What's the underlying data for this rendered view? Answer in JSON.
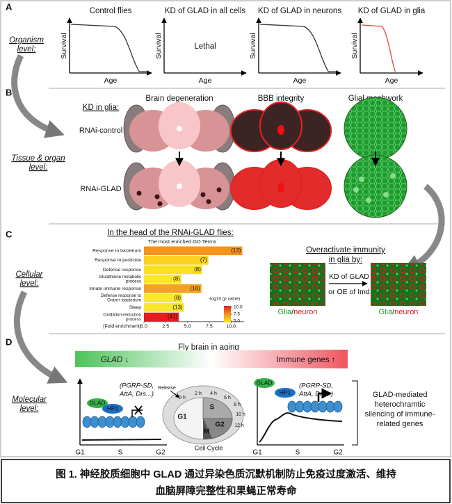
{
  "panel_labels": [
    "A",
    "B",
    "C",
    "D"
  ],
  "levels": {
    "organism": [
      "Organism",
      "level:"
    ],
    "tissue": [
      "Tissue & organ",
      "level:"
    ],
    "cellular": [
      "Cellular",
      "level:"
    ],
    "molecular": [
      "Molecular",
      "level:"
    ]
  },
  "panel_a": {
    "y_label": "Survival",
    "x_label": "Age",
    "plots": [
      {
        "title": "Control flies"
      },
      {
        "title": "KD of GLAD in all cells",
        "note": "Lethal"
      },
      {
        "title": "KD of GLAD in neurons"
      },
      {
        "title": "KD of GLAD in glia"
      }
    ]
  },
  "panel_b": {
    "kd_label": "KD in glia:",
    "rows": [
      "RNAi-control",
      "RNAi-GLAD"
    ],
    "columns": [
      "Brain degeneration",
      "BBB integrity",
      "Glial meshwork"
    ]
  },
  "panel_c": {
    "chart": {
      "type": "bar",
      "title": "In the head of the RNAi-GLAD flies:",
      "subtitle": "The most enriched GO Terms",
      "categories": [
        [
          "Response to bacterium"
        ],
        [
          "Response to pesticide"
        ],
        [
          "Defense response"
        ],
        [
          "Glutathione metabolic",
          "process"
        ],
        [
          "Innate immune response"
        ],
        [
          "Defense response to",
          "Gram+ bacterium"
        ],
        [
          "Sleep"
        ],
        [
          "Oxidation-reduction",
          "process"
        ]
      ],
      "values": [
        11.3,
        7.4,
        6.7,
        4.3,
        6.6,
        4.4,
        4.6,
        4.0
      ],
      "gene_counts": [
        "(13)",
        "(7)",
        "(8)",
        "(8)",
        "(16)",
        "(8)",
        "(13)",
        "(41)"
      ],
      "colors": [
        "#f6921e",
        "#fbd21f",
        "#f9e11e",
        "#fbe81f",
        "#f5a21e",
        "#f9e92a",
        "#f9e530",
        "#e51d1e"
      ],
      "x_label": "(Fold enrichment)",
      "xlim": [
        0,
        11.5
      ],
      "xticks": [
        {
          "value": 0,
          "label": "0.0"
        },
        2.5,
        {
          "value": 5,
          "label": "5.0"
        },
        7.5,
        {
          "value": 10,
          "label": "10.0"
        }
      ],
      "color_scale": {
        "title": "-log10 (p value)",
        "lim": [
          4.5,
          10.5
        ],
        "ticks": [
          {
            "value": 10,
            "label": "10.0"
          },
          7.5,
          {
            "value": 5,
            "label": "5.0"
          }
        ],
        "colors": [
          "#e51d1e",
          "#f6921e",
          "#f9ec1f"
        ]
      }
    },
    "immunity": {
      "title": [
        "Overactivate immunity",
        "in glia by:"
      ],
      "method": [
        "KD of GLAD",
        "or OE of Imd"
      ],
      "image_label": [
        "Glia",
        "/",
        "neuron"
      ]
    }
  },
  "panel_d": {
    "aging": {
      "title": "Fly brain in aging",
      "left": "GLAD ↓",
      "right": "Immune genes ↑"
    },
    "left_plot": {
      "genes": [
        "(PGRP-SD,",
        "AttA, Drs...)"
      ],
      "proteins": [
        "GLAD",
        "HP1"
      ]
    },
    "right_plot": {
      "genes": [
        "(PGRP-SD,",
        "AttA, Drs...)"
      ],
      "proteins": [
        "GLAD",
        "HP1"
      ]
    },
    "x_labels": [
      "G1",
      "S",
      "G2"
    ],
    "cycle": {
      "release": "Release",
      "hours": [
        "0 h",
        "2 h",
        "4 h",
        "6 h",
        "8 h",
        "10 h",
        "12 h"
      ],
      "phases": [
        "G1",
        "S",
        "G2",
        "M"
      ],
      "title": "Cell Cycle"
    },
    "summary": [
      "GLAD-mediated",
      "heterochramtic",
      "silencing of immune-",
      "related genes"
    ]
  },
  "caption": [
    "图 1. 神经胶质细胞中 GLAD 通过异染色质沉默机制防止免疫过度激活、维持",
    "血脑屏障完整性和果蝇正常寿命"
  ]
}
